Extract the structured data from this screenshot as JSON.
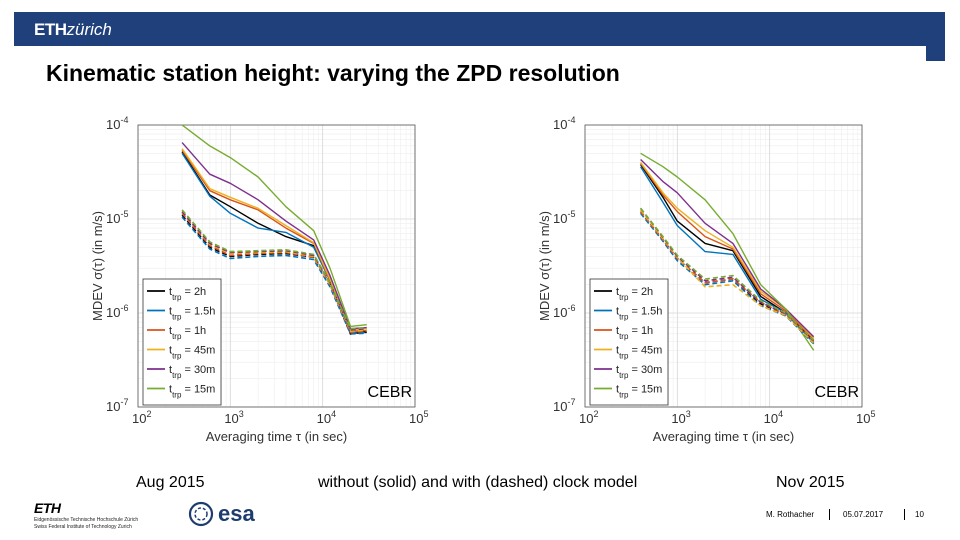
{
  "header": {
    "logo_bold": "ETH",
    "logo_italic": "zürich"
  },
  "title": "Kinematic station height: varying the ZPD resolution",
  "captions": {
    "left": "Aug 2015",
    "middle": "without (solid) and with (dashed) clock model",
    "right": "Nov 2015"
  },
  "footer": {
    "author": "M. Rothacher",
    "date": "05.07.2017",
    "page": "10",
    "eth_name": "ETH",
    "eth_line1": "Eidgenössische Technische Hochschule Zürich",
    "eth_line2": "Swiss Federal Institute of Technology Zurich",
    "esa_label": "esa"
  },
  "chart_data": [
    {
      "type": "line",
      "title": "Aug 2015",
      "station_label": "CEBR",
      "xlabel": "Averaging time τ (in sec)",
      "ylabel": "MDEV σ(τ) (in m/s)",
      "x_scale": "log",
      "y_scale": "log",
      "xlim": [
        100,
        100000
      ],
      "ylim": [
        1e-07,
        0.0001
      ],
      "x_ticks": [
        {
          "value": 100,
          "base": "10",
          "exp": "2"
        },
        {
          "value": 1000,
          "base": "10",
          "exp": "3"
        },
        {
          "value": 10000,
          "base": "10",
          "exp": "4"
        },
        {
          "value": 100000,
          "base": "10",
          "exp": "5"
        }
      ],
      "y_ticks": [
        {
          "value": 1e-07,
          "base": "10",
          "exp": "-7"
        },
        {
          "value": 1e-06,
          "base": "10",
          "exp": "-6"
        },
        {
          "value": 1e-05,
          "base": "10",
          "exp": "-5"
        },
        {
          "value": 0.0001,
          "base": "10",
          "exp": "-4"
        }
      ],
      "grid": true,
      "legend_position": "bottom-left",
      "legend": [
        {
          "sym": "t",
          "sub": "trp",
          "label": "= 2h",
          "color": "#000000"
        },
        {
          "sym": "t",
          "sub": "trp",
          "label": "= 1.5h",
          "color": "#0072bd"
        },
        {
          "sym": "t",
          "sub": "trp",
          "label": "= 1h",
          "color": "#d95319"
        },
        {
          "sym": "t",
          "sub": "trp",
          "label": "= 45m",
          "color": "#edb120"
        },
        {
          "sym": "t",
          "sub": "trp",
          "label": "= 30m",
          "color": "#7e2f8e"
        },
        {
          "sym": "t",
          "sub": "trp",
          "label": "= 15m",
          "color": "#77ac30"
        }
      ],
      "x": [
        300,
        600,
        1000,
        2000,
        4000,
        8000,
        12000,
        20000,
        30000
      ],
      "series": [
        {
          "name": "2h solid",
          "color": "#000000",
          "dash": false,
          "values": [
            5.2e-05,
            1.8e-05,
            1.35e-05,
            9e-06,
            6.5e-06,
            5.2e-06,
            2.3e-06,
            6e-07,
            6.4e-07
          ]
        },
        {
          "name": "1.5h solid",
          "color": "#0072bd",
          "dash": false,
          "values": [
            5e-05,
            1.75e-05,
            1.15e-05,
            8e-06,
            7.2e-06,
            5e-06,
            2.2e-06,
            6.2e-07,
            6.2e-07
          ]
        },
        {
          "name": "1h solid",
          "color": "#d95319",
          "dash": false,
          "values": [
            5.4e-05,
            2e-05,
            1.6e-05,
            1.25e-05,
            8e-06,
            5.5e-06,
            2.2e-06,
            6.4e-07,
            6.5e-07
          ]
        },
        {
          "name": "45m solid",
          "color": "#edb120",
          "dash": false,
          "values": [
            5.6e-05,
            2.1e-05,
            1.7e-05,
            1.3e-05,
            8.5e-06,
            5.6e-06,
            2.3e-06,
            6.6e-07,
            6.8e-07
          ]
        },
        {
          "name": "30m solid",
          "color": "#7e2f8e",
          "dash": false,
          "values": [
            6.5e-05,
            3e-05,
            2.4e-05,
            1.6e-05,
            9.5e-06,
            6e-06,
            2.5e-06,
            6.8e-07,
            7e-07
          ]
        },
        {
          "name": "15m solid",
          "color": "#77ac30",
          "dash": false,
          "values": [
            0.0001,
            6e-05,
            4.5e-05,
            2.8e-05,
            1.35e-05,
            7.5e-06,
            3e-06,
            7.2e-07,
            7.5e-07
          ]
        },
        {
          "name": "2h dashed",
          "color": "#000000",
          "dash": true,
          "values": [
            1.1e-05,
            5e-06,
            4e-06,
            4.2e-06,
            4.3e-06,
            3.9e-06,
            2e-06,
            6e-07,
            6.3e-07
          ]
        },
        {
          "name": "1.5h dashed",
          "color": "#0072bd",
          "dash": true,
          "values": [
            1.05e-05,
            4.8e-06,
            3.8e-06,
            4e-06,
            4.1e-06,
            3.7e-06,
            1.9e-06,
            6e-07,
            6.1e-07
          ]
        },
        {
          "name": "1h dashed",
          "color": "#d95319",
          "dash": true,
          "values": [
            1.15e-05,
            5.2e-06,
            4.1e-06,
            4.3e-06,
            4.4e-06,
            3.9e-06,
            2e-06,
            6.2e-07,
            6.4e-07
          ]
        },
        {
          "name": "45m dashed",
          "color": "#edb120",
          "dash": true,
          "values": [
            1.2e-05,
            5.4e-06,
            4.3e-06,
            4.4e-06,
            4.5e-06,
            4e-06,
            2e-06,
            6.4e-07,
            6.6e-07
          ]
        },
        {
          "name": "30m dashed",
          "color": "#7e2f8e",
          "dash": true,
          "values": [
            1.2e-05,
            5.5e-06,
            4.4e-06,
            4.5e-06,
            4.6e-06,
            4.1e-06,
            2.1e-06,
            6.6e-07,
            6.8e-07
          ]
        },
        {
          "name": "15m dashed",
          "color": "#77ac30",
          "dash": true,
          "values": [
            1.25e-05,
            5.7e-06,
            4.5e-06,
            4.6e-06,
            4.7e-06,
            4.2e-06,
            2.1e-06,
            6.8e-07,
            7e-07
          ]
        }
      ]
    },
    {
      "type": "line",
      "title": "Nov 2015",
      "station_label": "CEBR",
      "xlabel": "Averaging time τ (in sec)",
      "ylabel": "MDEV σ(τ) (in m/s)",
      "x_scale": "log",
      "y_scale": "log",
      "xlim": [
        100,
        100000
      ],
      "ylim": [
        1e-07,
        0.0001
      ],
      "x_ticks": [
        {
          "value": 100,
          "base": "10",
          "exp": "2"
        },
        {
          "value": 1000,
          "base": "10",
          "exp": "3"
        },
        {
          "value": 10000,
          "base": "10",
          "exp": "4"
        },
        {
          "value": 100000,
          "base": "10",
          "exp": "5"
        }
      ],
      "y_ticks": [
        {
          "value": 1e-07,
          "base": "10",
          "exp": "-7"
        },
        {
          "value": 1e-06,
          "base": "10",
          "exp": "-6"
        },
        {
          "value": 1e-05,
          "base": "10",
          "exp": "-5"
        },
        {
          "value": 0.0001,
          "base": "10",
          "exp": "-4"
        }
      ],
      "grid": true,
      "legend_position": "bottom-left",
      "legend": [
        {
          "sym": "t",
          "sub": "trp",
          "label": "= 2h",
          "color": "#000000"
        },
        {
          "sym": "t",
          "sub": "trp",
          "label": "= 1.5h",
          "color": "#0072bd"
        },
        {
          "sym": "t",
          "sub": "trp",
          "label": "= 1h",
          "color": "#d95319"
        },
        {
          "sym": "t",
          "sub": "trp",
          "label": "= 45m",
          "color": "#edb120"
        },
        {
          "sym": "t",
          "sub": "trp",
          "label": "= 30m",
          "color": "#7e2f8e"
        },
        {
          "sym": "t",
          "sub": "trp",
          "label": "= 15m",
          "color": "#77ac30"
        }
      ],
      "x": [
        400,
        700,
        1000,
        2000,
        4000,
        8000,
        15000,
        30000
      ],
      "series": [
        {
          "name": "2h solid",
          "color": "#000000",
          "dash": false,
          "values": [
            3.8e-05,
            1.7e-05,
            9.5e-06,
            5.5e-06,
            4.6e-06,
            1.5e-06,
            1e-06,
            5e-07
          ]
        },
        {
          "name": "1.5h solid",
          "color": "#0072bd",
          "dash": false,
          "values": [
            3.6e-05,
            1.5e-05,
            8.5e-06,
            4.5e-06,
            4.2e-06,
            1.4e-06,
            1e-06,
            4.8e-07
          ]
        },
        {
          "name": "1h solid",
          "color": "#d95319",
          "dash": false,
          "values": [
            3.9e-05,
            1.8e-05,
            1.2e-05,
            6.5e-06,
            4.8e-06,
            1.6e-06,
            1.05e-06,
            5.2e-07
          ]
        },
        {
          "name": "45m solid",
          "color": "#edb120",
          "dash": false,
          "values": [
            4e-05,
            1.9e-05,
            1.3e-05,
            7.5e-06,
            5e-06,
            1.7e-06,
            1.1e-06,
            5.4e-07
          ]
        },
        {
          "name": "30m solid",
          "color": "#7e2f8e",
          "dash": false,
          "values": [
            4.3e-05,
            2.5e-05,
            1.9e-05,
            9e-06,
            5.5e-06,
            1.8e-06,
            1.1e-06,
            5.6e-07
          ]
        },
        {
          "name": "15m solid",
          "color": "#77ac30",
          "dash": false,
          "values": [
            5e-05,
            3.6e-05,
            2.8e-05,
            1.6e-05,
            7e-06,
            2e-06,
            1.1e-06,
            4e-07
          ]
        },
        {
          "name": "2h dashed",
          "color": "#000000",
          "dash": true,
          "values": [
            1.2e-05,
            6e-06,
            3.8e-06,
            2.1e-06,
            2.3e-06,
            1.25e-06,
            9.5e-07,
            4.8e-07
          ]
        },
        {
          "name": "1.5h dashed",
          "color": "#0072bd",
          "dash": true,
          "values": [
            1.15e-05,
            5.8e-06,
            3.6e-06,
            2e-06,
            2.2e-06,
            1.2e-06,
            9.3e-07,
            4.7e-07
          ]
        },
        {
          "name": "1h dashed",
          "color": "#d95319",
          "dash": true,
          "values": [
            1.2e-05,
            6e-06,
            3.8e-06,
            2.1e-06,
            2.3e-06,
            1.3e-06,
            9.6e-07,
            4.9e-07
          ]
        },
        {
          "name": "45m dashed",
          "color": "#edb120",
          "dash": true,
          "values": [
            1.25e-05,
            6.2e-06,
            3.9e-06,
            1.9e-06,
            2e-06,
            1.2e-06,
            9.4e-07,
            4.8e-07
          ]
        },
        {
          "name": "30m dashed",
          "color": "#7e2f8e",
          "dash": true,
          "values": [
            1.3e-05,
            6.4e-06,
            4e-06,
            2.2e-06,
            2.4e-06,
            1.3e-06,
            9.8e-07,
            5e-07
          ]
        },
        {
          "name": "15m dashed",
          "color": "#77ac30",
          "dash": true,
          "values": [
            1.3e-05,
            6.5e-06,
            4.1e-06,
            2.3e-06,
            2.5e-06,
            1.35e-06,
            1e-06,
            5.1e-07
          ]
        }
      ]
    }
  ]
}
